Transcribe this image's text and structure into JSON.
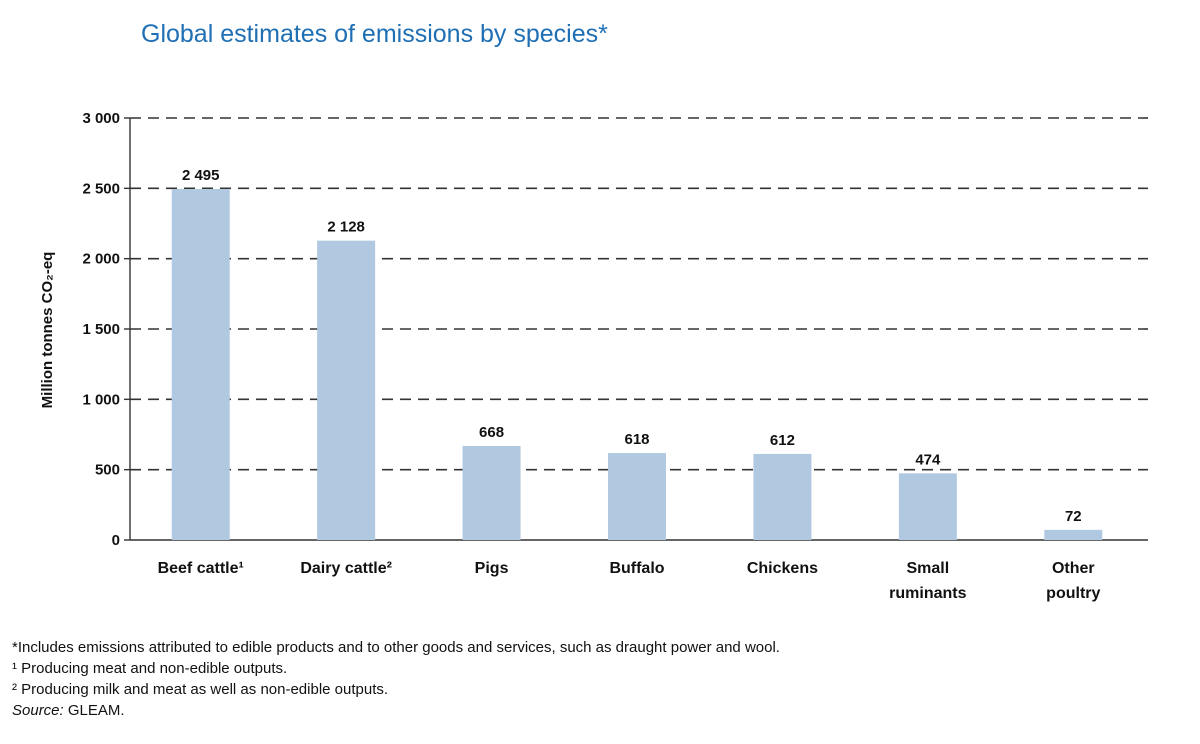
{
  "chart_data": {
    "type": "bar",
    "title": "Global estimates of emissions by species*",
    "ylabel": "Million tonnes CO₂-eq",
    "ylim": [
      0,
      3000
    ],
    "yticks": [
      0,
      500,
      1000,
      1500,
      2000,
      2500,
      3000
    ],
    "ytick_labels": [
      "0",
      "500",
      "1 000",
      "1 500",
      "2 000",
      "2 500",
      "3 000"
    ],
    "grid": "dashed horizontal",
    "categories": [
      [
        "Beef cattle¹"
      ],
      [
        "Dairy cattle²"
      ],
      [
        "Pigs"
      ],
      [
        "Buffalo"
      ],
      [
        "Chickens"
      ],
      [
        "Small",
        "ruminants"
      ],
      [
        "Other",
        "poultry"
      ]
    ],
    "values": [
      2495,
      2128,
      668,
      618,
      612,
      474,
      72
    ],
    "value_labels": [
      "2 495",
      "2 128",
      "668",
      "618",
      "612",
      "474",
      "72"
    ],
    "bar_color": "#b0c8e0"
  },
  "footnotes": {
    "star": "*Includes emissions attributed to edible products and to other goods and services, such as draught power and wool.",
    "one": "¹ Producing meat and non-edible outputs.",
    "two": "² Producing milk and meat as well as non-edible outputs.",
    "source_label": "Source:",
    "source_value": " GLEAM."
  },
  "colors": {
    "title": "#1f6fb4",
    "text": "#111111",
    "grid": "#333333"
  }
}
